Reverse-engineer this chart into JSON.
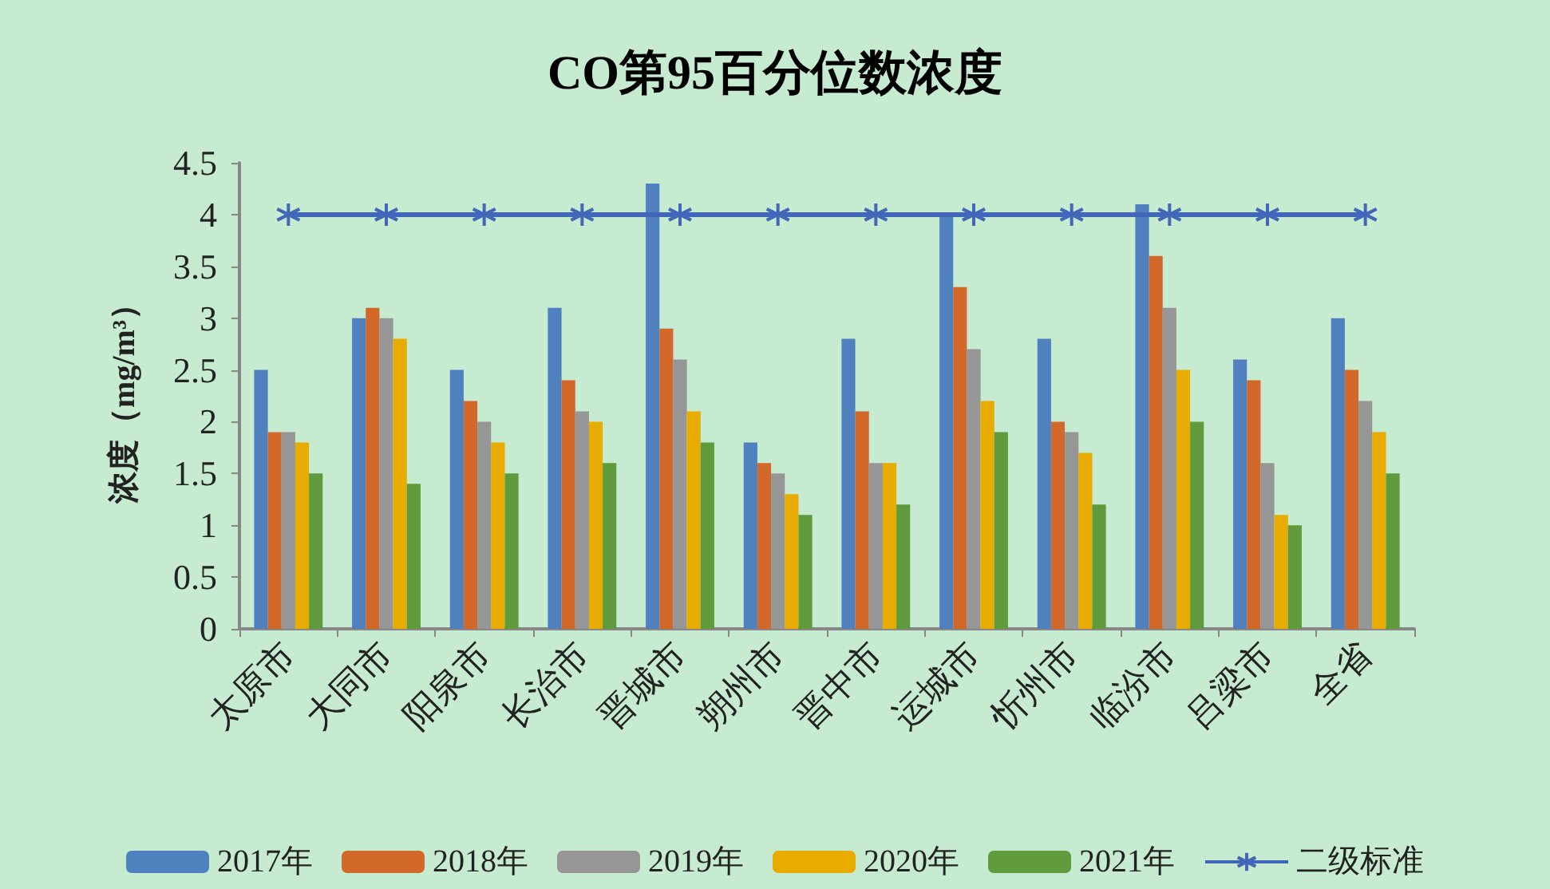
{
  "chart_data": {
    "type": "bar",
    "title": "CO第95百分位数浓度",
    "ylabel": "浓度（mg/m³）",
    "categories": [
      "太原市",
      "大同市",
      "阳泉市",
      "长治市",
      "晋城市",
      "朔州市",
      "晋中市",
      "运城市",
      "忻州市",
      "临汾市",
      "吕梁市",
      "全省"
    ],
    "series": [
      {
        "name": "2017年",
        "color": "#4e81bd",
        "values": [
          2.5,
          3.0,
          2.5,
          3.1,
          4.3,
          1.8,
          2.8,
          4.0,
          2.8,
          4.1,
          2.6,
          3.0
        ]
      },
      {
        "name": "2018年",
        "color": "#d2692a",
        "values": [
          1.9,
          3.1,
          2.2,
          2.4,
          2.9,
          1.6,
          2.1,
          3.3,
          2.0,
          3.6,
          2.4,
          2.5
        ]
      },
      {
        "name": "2019年",
        "color": "#969696",
        "values": [
          1.9,
          3.0,
          2.0,
          2.1,
          2.6,
          1.5,
          1.6,
          2.7,
          1.9,
          3.1,
          1.6,
          2.2
        ]
      },
      {
        "name": "2020年",
        "color": "#e8ab00",
        "values": [
          1.8,
          2.8,
          1.8,
          2.0,
          2.1,
          1.3,
          1.6,
          2.2,
          1.7,
          2.5,
          1.1,
          1.9
        ]
      },
      {
        "name": "2021年",
        "color": "#5f9a3c",
        "values": [
          1.5,
          1.4,
          1.5,
          1.6,
          1.8,
          1.1,
          1.2,
          1.9,
          1.2,
          2.0,
          1.0,
          1.5
        ]
      },
      {
        "name": "二级标准",
        "type": "line",
        "color": "#4267b8",
        "marker": "cross",
        "values": [
          4,
          4,
          4,
          4,
          4,
          4,
          4,
          4,
          4,
          4,
          4,
          4
        ]
      }
    ],
    "ylim": [
      0,
      4.5
    ],
    "yticks": [
      0,
      0.5,
      1,
      1.5,
      2,
      2.5,
      3,
      3.5,
      4,
      4.5
    ],
    "grid": false,
    "legend": "bottom"
  }
}
